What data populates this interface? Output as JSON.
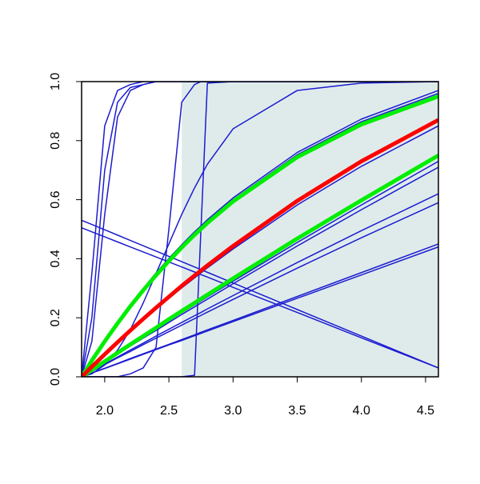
{
  "chart_data": {
    "type": "line",
    "x": [
      1.82,
      1.9,
      2.0,
      2.1,
      2.2,
      2.3,
      2.4,
      2.5,
      2.6,
      2.7,
      2.75,
      2.8,
      3.0,
      3.5,
      4.0,
      4.6
    ],
    "xlim": [
      1.82,
      4.6
    ],
    "ylim": [
      0,
      1
    ],
    "xticks": [
      {
        "value": 2,
        "label": "2.0"
      },
      2.5,
      {
        "value": 3,
        "label": "3.0"
      },
      3.5,
      {
        "value": 4,
        "label": "4.0"
      },
      4.5
    ],
    "yticks": [
      {
        "value": 0,
        "label": "0.0"
      },
      0.2,
      0.4,
      0.6,
      0.8,
      {
        "value": 1,
        "label": "1.0"
      }
    ],
    "shade": {
      "x": [
        2.6,
        4.6
      ],
      "color": "#dfebeb"
    },
    "series": [
      {
        "color": "#1c1cd0",
        "linewidth": 1.5,
        "values": [
          0,
          0.35,
          0.85,
          0.97,
          0.99,
          1,
          1,
          1,
          1,
          1,
          1,
          1,
          1,
          1,
          1,
          1
        ]
      },
      {
        "color": "#1c1cd0",
        "linewidth": 1.5,
        "values": [
          0,
          0.2,
          0.7,
          0.93,
          0.98,
          0.99,
          1,
          1,
          1,
          1,
          1,
          1,
          1,
          1,
          1,
          1
        ]
      },
      {
        "color": "#1c1cd0",
        "linewidth": 1.5,
        "values": [
          0,
          0.12,
          0.55,
          0.88,
          0.97,
          0.99,
          1,
          1,
          1,
          1,
          1,
          1,
          1,
          1,
          1,
          1
        ]
      },
      {
        "color": "#1c1cd0",
        "linewidth": 1.5,
        "values": [
          0,
          0,
          0,
          0,
          0.01,
          0.03,
          0.1,
          0.5,
          0.93,
          0.99,
          1,
          1,
          1,
          1,
          1,
          1
        ]
      },
      {
        "color": "#1c1cd0",
        "linewidth": 1.5,
        "values": [
          0,
          0,
          0,
          0,
          0,
          0,
          0,
          0,
          0,
          0.005,
          0.5,
          0.995,
          1,
          1,
          1,
          1
        ]
      },
      {
        "color": "#1c1cd0",
        "linewidth": 1.5,
        "values": [
          0,
          0.01,
          0.04,
          0.09,
          0.16,
          0.25,
          0.35,
          0.45,
          0.55,
          0.64,
          0.68,
          0.72,
          0.84,
          0.97,
          0.995,
          1
        ]
      },
      {
        "color": "#1c1cd0",
        "linewidth": 1.5,
        "values": [
          0,
          0.056,
          0.122,
          0.185,
          0.244,
          0.299,
          0.352,
          0.401,
          0.447,
          0.491,
          0.511,
          0.532,
          0.606,
          0.76,
          0.873,
          0.97
        ]
      },
      {
        "color": "#1c1cd0",
        "linewidth": 1.5,
        "values": [
          0,
          0.055,
          0.121,
          0.183,
          0.241,
          0.296,
          0.348,
          0.397,
          0.442,
          0.486,
          0.506,
          0.526,
          0.6,
          0.752,
          0.864,
          0.96
        ]
      },
      {
        "color": "#1c1cd0",
        "linewidth": 1.5,
        "values": [
          0,
          0.034,
          0.075,
          0.115,
          0.154,
          0.192,
          0.229,
          0.265,
          0.301,
          0.335,
          0.352,
          0.369,
          0.433,
          0.582,
          0.713,
          0.85
        ]
      },
      {
        "color": "#1c1cd0",
        "linewidth": 1.5,
        "values": [
          0,
          0.023,
          0.051,
          0.079,
          0.107,
          0.134,
          0.162,
          0.189,
          0.217,
          0.244,
          0.257,
          0.271,
          0.324,
          0.455,
          0.582,
          0.73
        ]
      },
      {
        "color": "#1c1cd0",
        "linewidth": 1.5,
        "values": [
          0,
          0.022,
          0.049,
          0.077,
          0.104,
          0.131,
          0.157,
          0.184,
          0.211,
          0.237,
          0.25,
          0.263,
          0.315,
          0.443,
          0.566,
          0.71
        ]
      },
      {
        "color": "#1c1cd0",
        "linewidth": 1.5,
        "values": [
          0,
          0.019,
          0.043,
          0.067,
          0.091,
          0.114,
          0.138,
          0.161,
          0.184,
          0.207,
          0.218,
          0.23,
          0.275,
          0.387,
          0.495,
          0.62
        ]
      },
      {
        "color": "#1c1cd0",
        "linewidth": 1.5,
        "values": [
          0,
          0.018,
          0.041,
          0.064,
          0.086,
          0.109,
          0.131,
          0.153,
          0.175,
          0.197,
          0.208,
          0.219,
          0.262,
          0.368,
          0.471,
          0.59
        ]
      },
      {
        "color": "#1c1cd0",
        "linewidth": 1.5,
        "values": [
          0,
          0.013,
          0.029,
          0.045,
          0.062,
          0.078,
          0.094,
          0.11,
          0.126,
          0.142,
          0.151,
          0.159,
          0.191,
          0.272,
          0.353,
          0.45
        ]
      },
      {
        "color": "#1c1cd0",
        "linewidth": 1.5,
        "values": [
          0,
          0.013,
          0.028,
          0.044,
          0.06,
          0.076,
          0.092,
          0.108,
          0.123,
          0.139,
          0.147,
          0.155,
          0.187,
          0.266,
          0.345,
          0.44
        ]
      },
      {
        "color": "#1c1cd0",
        "linewidth": 1.5,
        "values": [
          0.53,
          0.516,
          0.498,
          0.48,
          0.462,
          0.444,
          0.426,
          0.408,
          0.39,
          0.372,
          0.363,
          0.354,
          0.318,
          0.228,
          0.138,
          0.03
        ]
      },
      {
        "color": "#1c1cd0",
        "linewidth": 1.5,
        "values": [
          0.505,
          0.491,
          0.474,
          0.457,
          0.44,
          0.423,
          0.406,
          0.389,
          0.372,
          0.355,
          0.346,
          0.338,
          0.303,
          0.218,
          0.132,
          0.03
        ]
      },
      {
        "color": "#00ee00",
        "linewidth": 5,
        "values": [
          0,
          0.055,
          0.12,
          0.181,
          0.239,
          0.293,
          0.344,
          0.392,
          0.438,
          0.481,
          0.501,
          0.521,
          0.594,
          0.744,
          0.855,
          0.95
        ]
      },
      {
        "color": "#00ee00",
        "linewidth": 5,
        "values": [
          0,
          0.023,
          0.052,
          0.081,
          0.11,
          0.138,
          0.166,
          0.195,
          0.223,
          0.25,
          0.264,
          0.278,
          0.333,
          0.468,
          0.598,
          0.75
        ]
      },
      {
        "color": "#ff0000",
        "linewidth": 5,
        "values": [
          0,
          0.034,
          0.076,
          0.117,
          0.157,
          0.196,
          0.234,
          0.271,
          0.308,
          0.343,
          0.36,
          0.377,
          0.443,
          0.596,
          0.73,
          0.87
        ]
      }
    ]
  }
}
